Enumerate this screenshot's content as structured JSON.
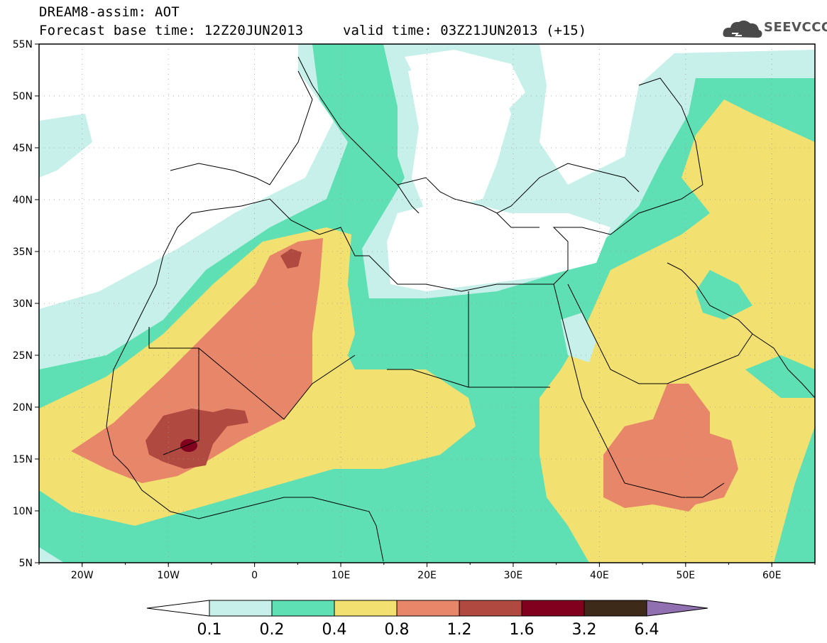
{
  "header": {
    "title_line1": "DREAM8-assim: AOT",
    "title_line2": "Forecast base time: 12Z20JUN2013",
    "valid_time": "valid time: 03Z21JUN2013 (+15)",
    "logo_text": "SEEVCCC"
  },
  "map": {
    "lat_labels": [
      "55N",
      "50N",
      "45N",
      "40N",
      "35N",
      "30N",
      "25N",
      "20N",
      "15N",
      "10N",
      "5N"
    ],
    "lon_labels": [
      "20W",
      "10W",
      "0",
      "10E",
      "20E",
      "30E",
      "40E",
      "50E",
      "60E"
    ],
    "lon_range": [
      -25,
      65
    ],
    "lat_range": [
      5,
      55
    ],
    "grid": "dotted"
  },
  "legend": {
    "labels": [
      "0.1",
      "0.2",
      "0.4",
      "0.8",
      "1.2",
      "1.6",
      "3.2",
      "6.4"
    ],
    "colors": [
      "#ffffff",
      "#c8f0ea",
      "#5ee0b4",
      "#f2e070",
      "#e8866a",
      "#b04a40",
      "#80001e",
      "#3d2a18",
      "#9070b0"
    ]
  }
}
